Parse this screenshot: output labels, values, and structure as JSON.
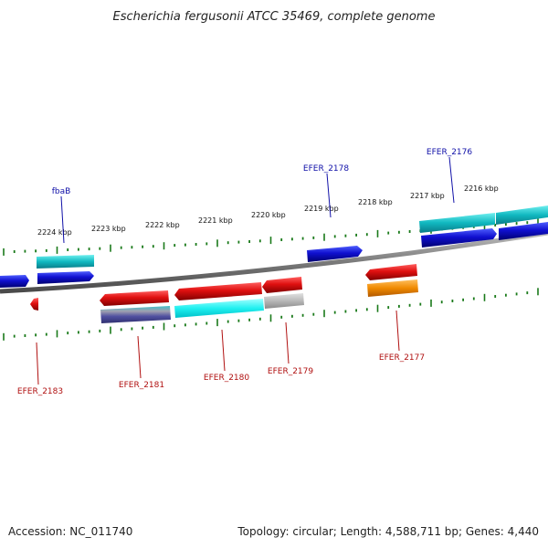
{
  "title": "Escherichia fergusonii ATCC 35469, complete genome",
  "ruler_ticks": [
    "2224 kbp",
    "2223 kbp",
    "2222 kbp",
    "2221 kbp",
    "2220 kbp",
    "2219 kbp",
    "2218 kbp",
    "2217 kbp",
    "2216 kbp"
  ],
  "forward_genes": [
    "fbaB",
    "EFER_2178",
    "EFER_2176"
  ],
  "reverse_genes": [
    "EFER_2183",
    "EFER_2181",
    "EFER_2180",
    "EFER_2179",
    "EFER_2177"
  ],
  "footer": {
    "accession": "Accession: NC_011740",
    "summary": "Topology: circular; Length: 4,588,711 bp; Genes: 4,440"
  },
  "colors": {
    "cds": "#1010d0",
    "cds_reverse": "#e01010",
    "cyan_feature": "#10b8c0",
    "orange_feature": "#f08a00",
    "tick": "#1a7a1a",
    "backbone": "#808080"
  }
}
